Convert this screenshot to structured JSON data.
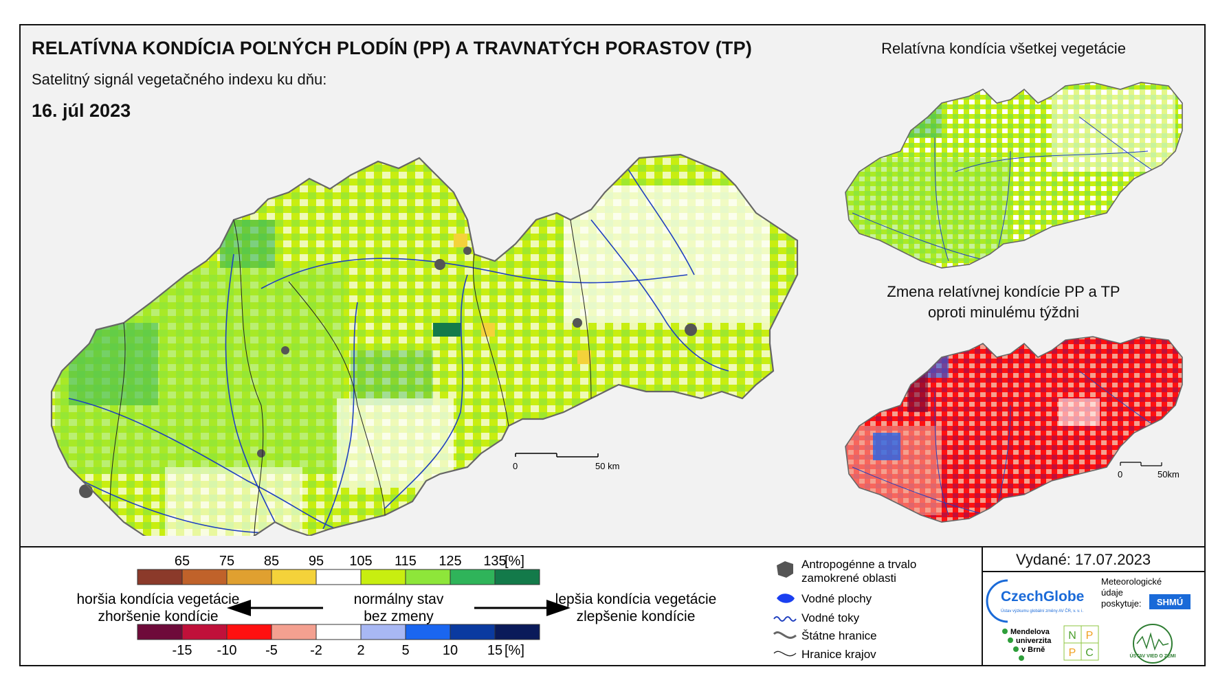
{
  "header": {
    "title": "RELATÍVNA KONDÍCIA POĽNÝCH PLODÍN (PP) A TRAVNATÝCH PORASTOV (TP)",
    "subtitle": "Satelitný signál vegetačného indexu ku dňu:",
    "date": "16. júl 2023"
  },
  "maps": {
    "main_scale": {
      "start": "0",
      "end": "50 km"
    },
    "inset_top_title": "Relatívna kondícia všetkej vegetácie",
    "inset_bottom_title_line1": "Zmena relatívnej kondície PP a TP",
    "inset_bottom_title_line2": "oproti minulému týždni",
    "inset_scale": {
      "start": "0",
      "end": "50km"
    }
  },
  "legend": {
    "condition_scale": {
      "ticks": [
        "65",
        "75",
        "85",
        "95",
        "105",
        "115",
        "125",
        "135",
        "[%]"
      ],
      "colors": [
        "#8b3a2a",
        "#c0622a",
        "#e0a030",
        "#f4d23a",
        "#ffffff",
        "#c8ee10",
        "#8ee63a",
        "#2fb45a",
        "#137a4a"
      ]
    },
    "change_scale": {
      "ticks": [
        "-15",
        "-10",
        "-5",
        "-2",
        "2",
        "5",
        "10",
        "15",
        "[%]"
      ],
      "colors": [
        "#6e0a3a",
        "#c0103a",
        "#ff1010",
        "#f4a090",
        "#ffffff",
        "#a8b8f4",
        "#1a66f0",
        "#0a3aa0",
        "#0a1a5a"
      ]
    },
    "left_text_line1": "horšia kondícia vegetácie",
    "left_text_line2": "zhoršenie kondície",
    "mid_text_line1": "normálny stav",
    "mid_text_line2": "bez zmeny",
    "right_text_line1": "lepšia kondícia vegetácie",
    "right_text_line2": "zlepšenie kondície",
    "symbols": [
      {
        "icon": "urban-area-icon",
        "label_line1": "Antropogénne a trvalo",
        "label_line2": "zamokrené oblasti"
      },
      {
        "icon": "water-body-icon",
        "label_line1": "Vodné plochy",
        "label_line2": ""
      },
      {
        "icon": "river-icon",
        "label_line1": "Vodné toky",
        "label_line2": ""
      },
      {
        "icon": "state-border-icon",
        "label_line1": "Štátne hranice",
        "label_line2": ""
      },
      {
        "icon": "region-border-icon",
        "label_line1": "Hranice krajov",
        "label_line2": ""
      }
    ]
  },
  "footer": {
    "issued": "Vydané: 17.07.2023",
    "czechglobe": "CzechGlobe",
    "czechglobe_sub": "Ústav výzkumu globální změny AV ČR, v. v. i.",
    "meteo_line1": "Meteorologické",
    "meteo_line2": "údaje",
    "meteo_line3": "poskytuje:",
    "shmu": "SHMÚ",
    "mendel_line1": "Mendelova",
    "mendel_line2": "univerzita",
    "mendel_line3": "v Brně",
    "nppc": [
      "N",
      "P",
      "P",
      "C"
    ],
    "uvz": "ÚSTAV VIED O ZEMI"
  }
}
